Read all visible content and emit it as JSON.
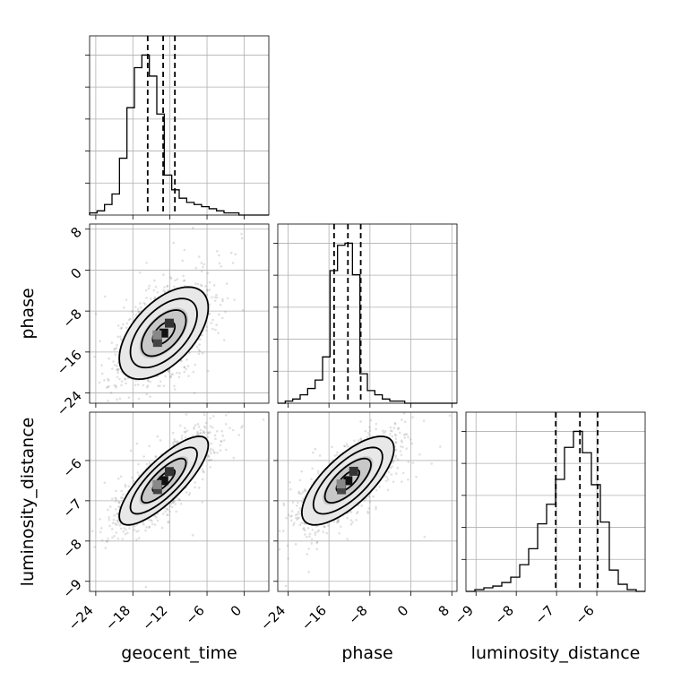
{
  "chart_data": {
    "type": "corner",
    "parameters": [
      "geocent_time",
      "phase",
      "luminosity_distance"
    ],
    "ranges": [
      [
        -25,
        4
      ],
      [
        -26,
        9
      ],
      [
        -9.25,
        -4.8
      ]
    ],
    "ticks": [
      {
        "values": [
          -24,
          -18,
          -12,
          -6,
          0
        ],
        "labels": [
          "−24",
          "−18",
          "−12",
          "−6",
          "0"
        ]
      },
      {
        "values": [
          -24,
          -16,
          -8,
          0,
          8
        ],
        "labels": [
          "−24",
          "−16",
          "−8",
          "0",
          "8"
        ]
      },
      {
        "values": [
          -9,
          -8,
          -7,
          -6
        ],
        "labels": [
          "−9",
          "−8",
          "−7",
          "−6"
        ]
      }
    ],
    "quantiles": [
      [
        -15.6,
        -13.1,
        -11.2
      ],
      [
        -15.0,
        -12.3,
        -9.8
      ],
      [
        -7.02,
        -6.42,
        -5.98
      ]
    ],
    "histograms": [
      {
        "counts": [
          1,
          2,
          5,
          10,
          27,
          51,
          70,
          76,
          66,
          48,
          19,
          12,
          8,
          6,
          5,
          4,
          3,
          2,
          1,
          1,
          0,
          0,
          0,
          0
        ]
      },
      {
        "counts": [
          0,
          1,
          2,
          4,
          7,
          11,
          22,
          63,
          75,
          76,
          61,
          14,
          6,
          4,
          2,
          1,
          1,
          0,
          0,
          0,
          0,
          0,
          0,
          0
        ]
      },
      {
        "counts": [
          0,
          1,
          2,
          3,
          5,
          8,
          15,
          24,
          38,
          49,
          63,
          81,
          90,
          78,
          60,
          39,
          12,
          4,
          1,
          0
        ]
      }
    ],
    "joint": [
      {
        "x": "geocent_time",
        "y": "phase",
        "center": [
          -13.0,
          -12.3
        ],
        "sigma": [
          3.6,
          4.5
        ],
        "rho": 0.55
      },
      {
        "x": "geocent_time",
        "y": "luminosity_distance",
        "center": [
          -13.0,
          -6.5
        ],
        "sigma": [
          3.6,
          0.55
        ],
        "rho": 0.8
      },
      {
        "x": "phase",
        "y": "luminosity_distance",
        "center": [
          -12.3,
          -6.5
        ],
        "sigma": [
          4.5,
          0.55
        ],
        "rho": 0.72
      }
    ],
    "grid": true,
    "contour_levels": [
      "0.5",
      "1",
      "1.5",
      "2"
    ]
  }
}
